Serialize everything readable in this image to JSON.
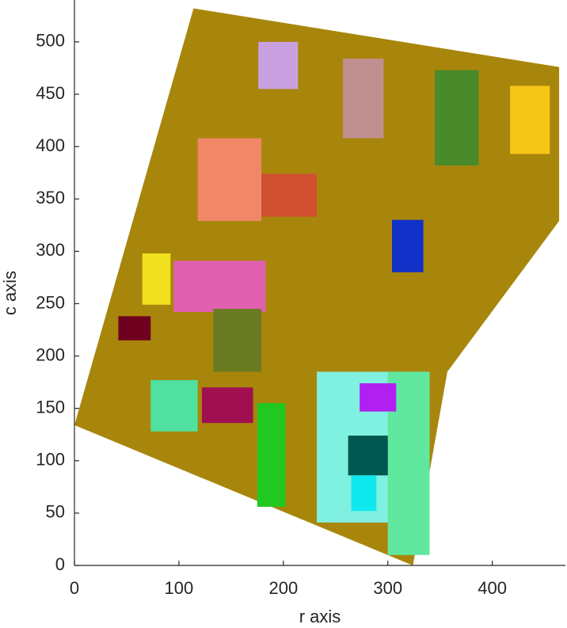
{
  "chart_data": {
    "type": "segmentation",
    "x_label": "r axis",
    "y_label": "c axis",
    "xlim": [
      0,
      470
    ],
    "ylim": [
      0,
      540
    ],
    "xticks": [
      0,
      100,
      200,
      300,
      400
    ],
    "yticks": [
      0,
      50,
      100,
      150,
      200,
      250,
      300,
      350,
      400,
      450,
      500
    ],
    "region": {
      "color": "#a8860b",
      "x": [
        0,
        114,
        464,
        464,
        357,
        324
      ],
      "y": [
        134,
        532,
        476,
        329,
        185,
        0
      ]
    },
    "segments": [
      {
        "color": "#c8a0e0",
        "x": [
          176,
          214
        ],
        "y": [
          455,
          500
        ]
      },
      {
        "color": "#c09090",
        "x": [
          257,
          296
        ],
        "y": [
          408,
          484
        ]
      },
      {
        "color": "#4a8a2a",
        "x": [
          345,
          387
        ],
        "y": [
          382,
          473
        ]
      },
      {
        "color": "#f5c518",
        "x": [
          417,
          455
        ],
        "y": [
          393,
          458
        ]
      },
      {
        "color": "#f08868",
        "x": [
          118,
          179
        ],
        "y": [
          329,
          408
        ]
      },
      {
        "color": "#d05030",
        "x": [
          179,
          232
        ],
        "y": [
          333,
          374
        ]
      },
      {
        "color": "#1030c8",
        "x": [
          304,
          334
        ],
        "y": [
          280,
          330
        ]
      },
      {
        "color": "#e060b0",
        "x": [
          95,
          183
        ],
        "y": [
          242,
          291
        ]
      },
      {
        "color": "#f0e020",
        "x": [
          65,
          92
        ],
        "y": [
          249,
          298
        ]
      },
      {
        "color": "#6a7a20",
        "x": [
          133,
          179
        ],
        "y": [
          185,
          245
        ]
      },
      {
        "color": "#700020",
        "x": [
          42,
          73
        ],
        "y": [
          215,
          238
        ]
      },
      {
        "color": "#50e0a0",
        "x": [
          73,
          118
        ],
        "y": [
          128,
          177
        ]
      },
      {
        "color": "#a01050",
        "x": [
          122,
          171
        ],
        "y": [
          136,
          170
        ]
      },
      {
        "color": "#20c820",
        "x": [
          175,
          202
        ],
        "y": [
          56,
          155
        ]
      },
      {
        "color": "#80f0e0",
        "x": [
          232,
          308
        ],
        "y": [
          41,
          185
        ]
      },
      {
        "color": "#60e8a0",
        "x": [
          300,
          340
        ],
        "y": [
          10,
          185
        ]
      },
      {
        "color": "#b020f0",
        "x": [
          273,
          308
        ],
        "y": [
          147,
          174
        ]
      },
      {
        "color": "#005850",
        "x": [
          262,
          300
        ],
        "y": [
          86,
          124
        ]
      },
      {
        "color": "#10e8f0",
        "x": [
          265,
          289
        ],
        "y": [
          52,
          86
        ]
      }
    ]
  }
}
